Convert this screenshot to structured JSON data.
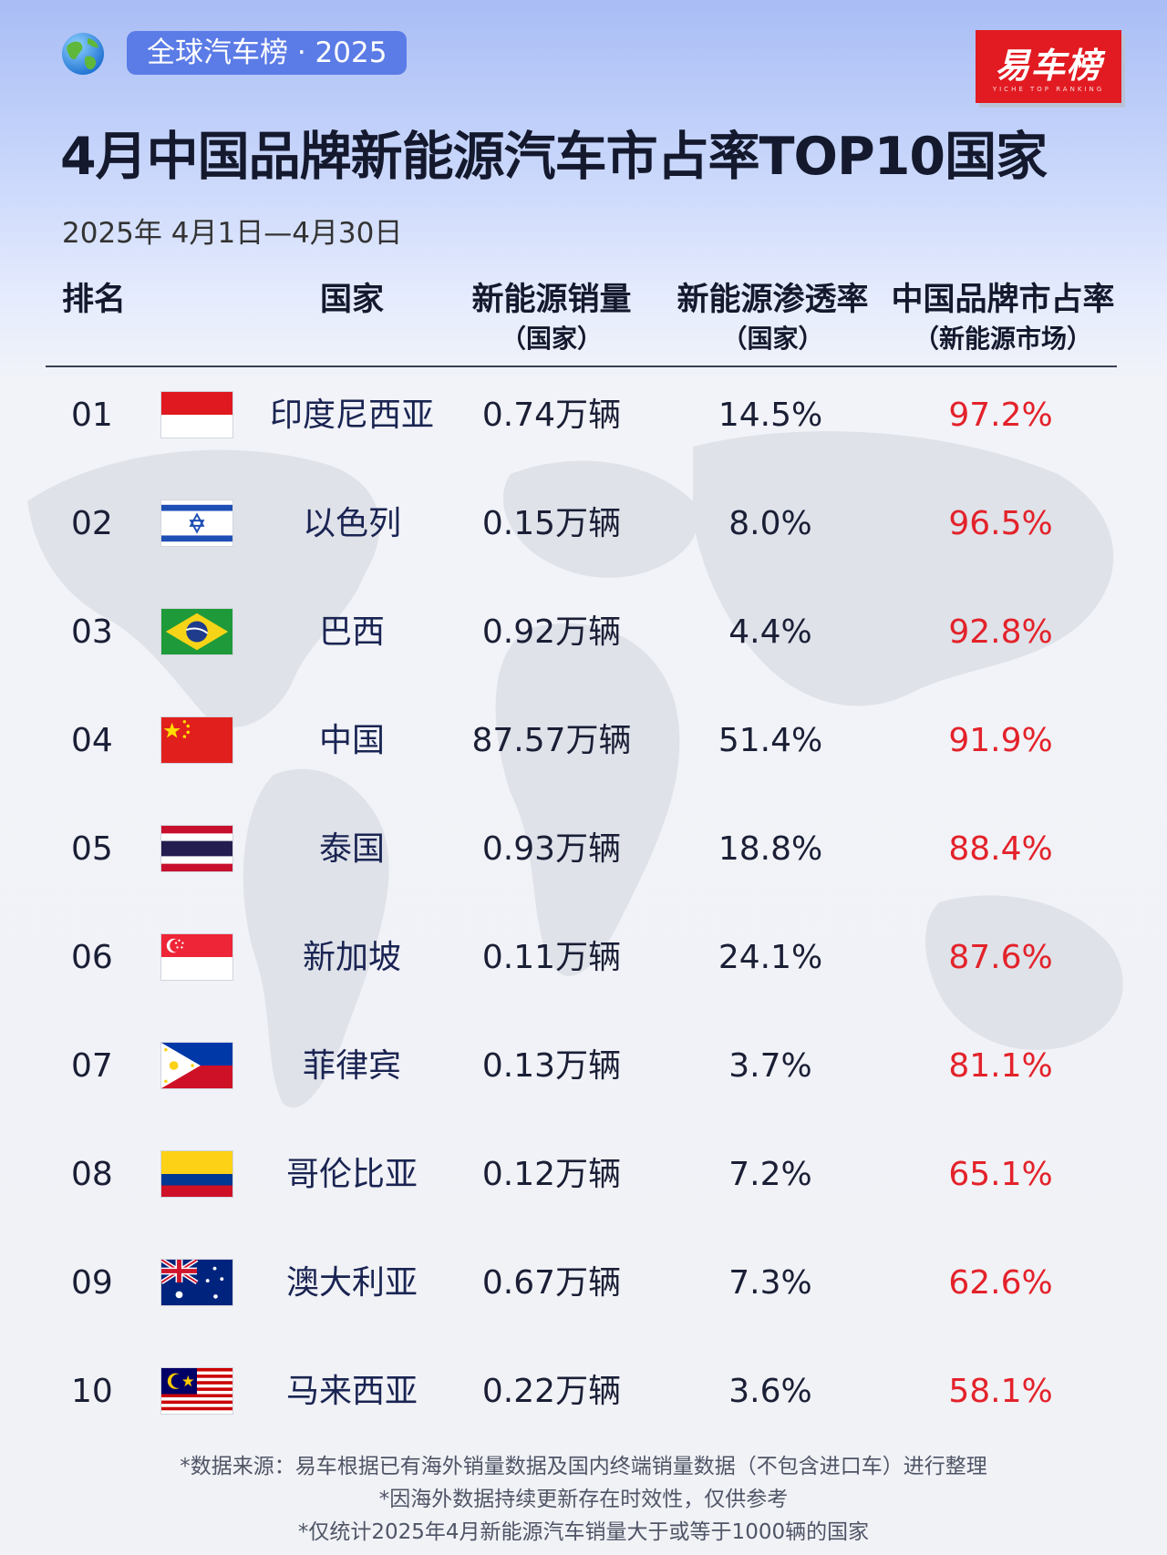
{
  "badge": {
    "label": "全球汽车榜 · 2025"
  },
  "logo": {
    "text": "易车榜",
    "sub": "YICHE TOP RANKING"
  },
  "title": "4月中国品牌新能源汽车市占率TOP10国家",
  "date_range": "2025年 4月1日—4月30日",
  "table": {
    "headers": {
      "rank": "排名",
      "country": "国家",
      "sales": "新能源销量",
      "sales_sub": "（国家）",
      "penetration": "新能源渗透率",
      "penetration_sub": "（国家）",
      "share": "中国品牌市占率",
      "share_sub": "（新能源市场）"
    },
    "rows": [
      {
        "rank": "01",
        "flag": "indonesia-flag",
        "country": "印度尼西亚",
        "sales": "0.74万辆",
        "penetration": "14.5%",
        "share": "97.2%"
      },
      {
        "rank": "02",
        "flag": "israel-flag",
        "country": "以色列",
        "sales": "0.15万辆",
        "penetration": "8.0%",
        "share": "96.5%"
      },
      {
        "rank": "03",
        "flag": "brazil-flag",
        "country": "巴西",
        "sales": "0.92万辆",
        "penetration": "4.4%",
        "share": "92.8%"
      },
      {
        "rank": "04",
        "flag": "china-flag",
        "country": "中国",
        "sales": "87.57万辆",
        "penetration": "51.4%",
        "share": "91.9%"
      },
      {
        "rank": "05",
        "flag": "thailand-flag",
        "country": "泰国",
        "sales": "0.93万辆",
        "penetration": "18.8%",
        "share": "88.4%"
      },
      {
        "rank": "06",
        "flag": "singapore-flag",
        "country": "新加坡",
        "sales": "0.11万辆",
        "penetration": "24.1%",
        "share": "87.6%"
      },
      {
        "rank": "07",
        "flag": "philippines-flag",
        "country": "菲律宾",
        "sales": "0.13万辆",
        "penetration": "3.7%",
        "share": "81.1%"
      },
      {
        "rank": "08",
        "flag": "colombia-flag",
        "country": "哥伦比亚",
        "sales": "0.12万辆",
        "penetration": "7.2%",
        "share": "65.1%"
      },
      {
        "rank": "09",
        "flag": "australia-flag",
        "country": "澳大利亚",
        "sales": "0.67万辆",
        "penetration": "7.3%",
        "share": "62.6%"
      },
      {
        "rank": "10",
        "flag": "malaysia-flag",
        "country": "马来西亚",
        "sales": "0.22万辆",
        "penetration": "3.6%",
        "share": "58.1%"
      }
    ]
  },
  "footnotes": [
    "*数据来源：易车根据已有海外销量数据及国内终端销量数据（不包含进口车）进行整理",
    "*因海外数据持续更新存在时效性，仅供参考",
    "*仅统计2025年4月新能源汽车销量大于或等于1000辆的国家"
  ],
  "colors": {
    "accent": "#5b7be6",
    "share_red": "#e3222a",
    "logo_red": "#e21b22"
  }
}
